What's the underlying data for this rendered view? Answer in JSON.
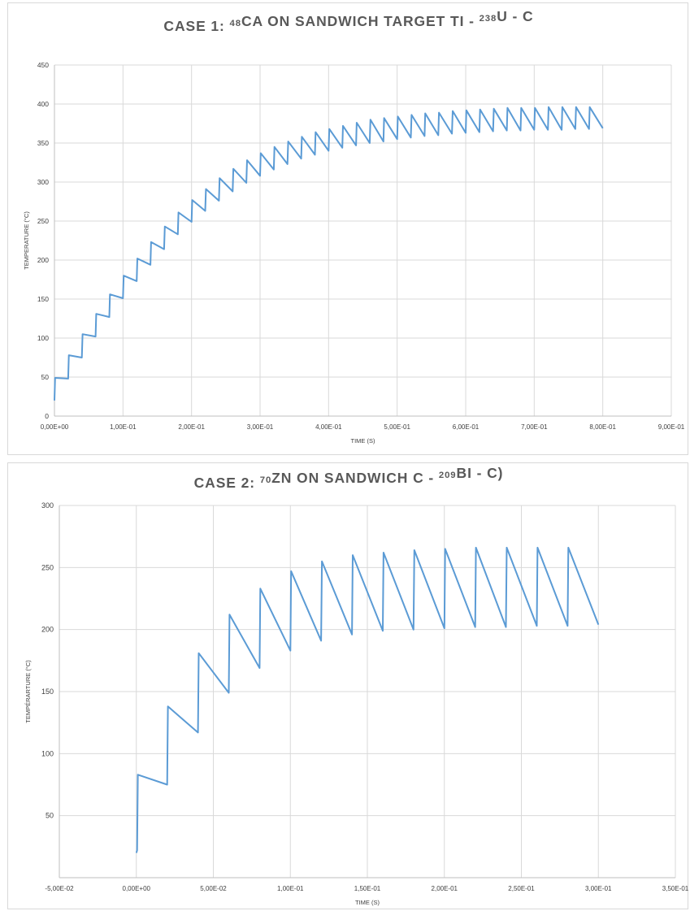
{
  "chart_data": [
    {
      "type": "line",
      "title": {
        "prefix": "CASE 1: ",
        "sup1": "48",
        "mid": "CA ON SANDWICH  TARGET  TI - ",
        "sup2": "238",
        "suffix": "U - C"
      },
      "xlabel": "TIME (S)",
      "ylabel": "TEMPERATURE (°C)",
      "xlim": [
        0,
        0.9
      ],
      "ylim": [
        0,
        450
      ],
      "x_ticks": [
        0,
        0.1,
        0.2,
        0.3,
        0.4,
        0.5,
        0.6,
        0.7,
        0.8,
        0.9
      ],
      "x_tick_labels": [
        "0,00E+00",
        "1,00E-01",
        "2,00E-01",
        "3,00E-01",
        "4,00E-01",
        "5,00E-01",
        "6,00E-01",
        "7,00E-01",
        "8,00E-01",
        "9,00E-01"
      ],
      "y_ticks": [
        0,
        50,
        100,
        150,
        200,
        250,
        300,
        350,
        400,
        450
      ],
      "y_tick_labels": [
        "0",
        "50",
        "100",
        "150",
        "200",
        "250",
        "300",
        "350",
        "400",
        "450"
      ],
      "grid": true,
      "color": "#5b9bd5",
      "series": [
        {
          "x": [
            0,
            0.001,
            0.02,
            0.021,
            0.04,
            0.041,
            0.06,
            0.061,
            0.08,
            0.081,
            0.1,
            0.101,
            0.12,
            0.121,
            0.14,
            0.141,
            0.16,
            0.161,
            0.18,
            0.181,
            0.2,
            0.201,
            0.22,
            0.221,
            0.24,
            0.241,
            0.26,
            0.261,
            0.28,
            0.281,
            0.3,
            0.301,
            0.32,
            0.321,
            0.34,
            0.341,
            0.36,
            0.361,
            0.38,
            0.381,
            0.4,
            0.401,
            0.42,
            0.421,
            0.44,
            0.441,
            0.46,
            0.461,
            0.48,
            0.481,
            0.5,
            0.501,
            0.52,
            0.521,
            0.54,
            0.541,
            0.56,
            0.561,
            0.58,
            0.581,
            0.6,
            0.601,
            0.62,
            0.621,
            0.64,
            0.641,
            0.66,
            0.661,
            0.68,
            0.681,
            0.7,
            0.701,
            0.72,
            0.721,
            0.74,
            0.741,
            0.76,
            0.761,
            0.78,
            0.781,
            0.8
          ],
          "y": [
            20,
            49,
            48,
            78,
            75,
            105,
            102,
            131,
            127,
            156,
            151,
            180,
            173,
            202,
            194,
            223,
            214,
            243,
            233,
            261,
            249,
            277,
            263,
            291,
            276,
            305,
            288,
            317,
            299,
            328,
            308,
            337,
            316,
            345,
            323,
            352,
            330,
            358,
            335,
            364,
            340,
            368,
            344,
            372,
            347,
            376,
            350,
            380,
            352,
            382,
            355,
            384,
            357,
            386,
            359,
            388,
            360,
            389,
            362,
            391,
            363,
            392,
            364,
            393,
            365,
            394,
            366,
            395,
            366,
            395,
            367,
            395,
            367,
            396,
            367,
            396,
            368,
            396,
            368,
            396,
            369
          ]
        }
      ]
    },
    {
      "type": "line",
      "title": {
        "prefix": "CASE 2: ",
        "sup1": "70",
        "mid": "ZN ON SANDWICH C - ",
        "sup2": "209",
        "suffix": "BI - C)"
      },
      "xlabel": "TIME (S)",
      "ylabel": "TEMPÉRARTURE (°C)",
      "xlim": [
        -0.05,
        0.35
      ],
      "ylim": [
        0,
        300
      ],
      "x_ticks": [
        -0.05,
        0,
        0.05,
        0.1,
        0.15,
        0.2,
        0.25,
        0.3,
        0.35
      ],
      "x_tick_labels": [
        "-5,00E-02",
        "0,00E+00",
        "5,00E-02",
        "1,00E-01",
        "1,50E-01",
        "2,00E-01",
        "2,50E-01",
        "3,00E-01",
        "3,50E-01"
      ],
      "y_ticks": [
        50,
        100,
        150,
        200,
        250,
        300
      ],
      "y_tick_labels": [
        "50",
        "100",
        "150",
        "200",
        "250",
        "300"
      ],
      "grid": true,
      "color": "#5b9bd5",
      "series": [
        {
          "x": [
            0,
            0.0005,
            0.001,
            0.02,
            0.0205,
            0.04,
            0.0405,
            0.06,
            0.0605,
            0.08,
            0.0805,
            0.1,
            0.1005,
            0.12,
            0.1205,
            0.14,
            0.1405,
            0.16,
            0.1605,
            0.18,
            0.1805,
            0.2,
            0.2005,
            0.22,
            0.2205,
            0.24,
            0.2405,
            0.26,
            0.2605,
            0.28,
            0.2805,
            0.3
          ],
          "y": [
            20,
            22,
            83,
            75,
            138,
            117,
            181,
            149,
            212,
            169,
            233,
            183,
            247,
            191,
            255,
            196,
            260,
            199,
            262,
            200,
            264,
            201,
            265,
            202,
            266,
            202,
            266,
            203,
            266,
            203,
            266,
            204
          ]
        }
      ]
    }
  ]
}
